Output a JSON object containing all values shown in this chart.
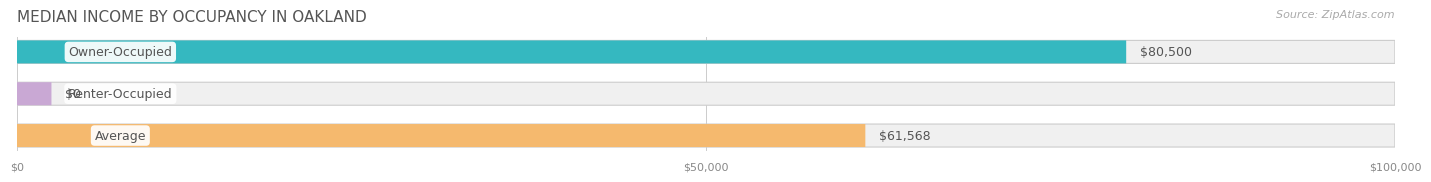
{
  "title": "MEDIAN INCOME BY OCCUPANCY IN OAKLAND",
  "source": "Source: ZipAtlas.com",
  "categories": [
    "Owner-Occupied",
    "Renter-Occupied",
    "Average"
  ],
  "values": [
    80500,
    0,
    61568
  ],
  "bar_colors": [
    "#35b8c0",
    "#c9a8d4",
    "#f5b96e"
  ],
  "bar_bg_color": "#f0f0f0",
  "bar_labels": [
    "$80,500",
    "$0",
    "$61,568"
  ],
  "xmax": 100000,
  "xticks": [
    0,
    50000,
    100000
  ],
  "xtick_labels": [
    "$0",
    "$50,000",
    "$100,000"
  ],
  "title_fontsize": 11,
  "source_fontsize": 8,
  "label_fontsize": 9,
  "value_fontsize": 9,
  "bg_color": "#ffffff"
}
